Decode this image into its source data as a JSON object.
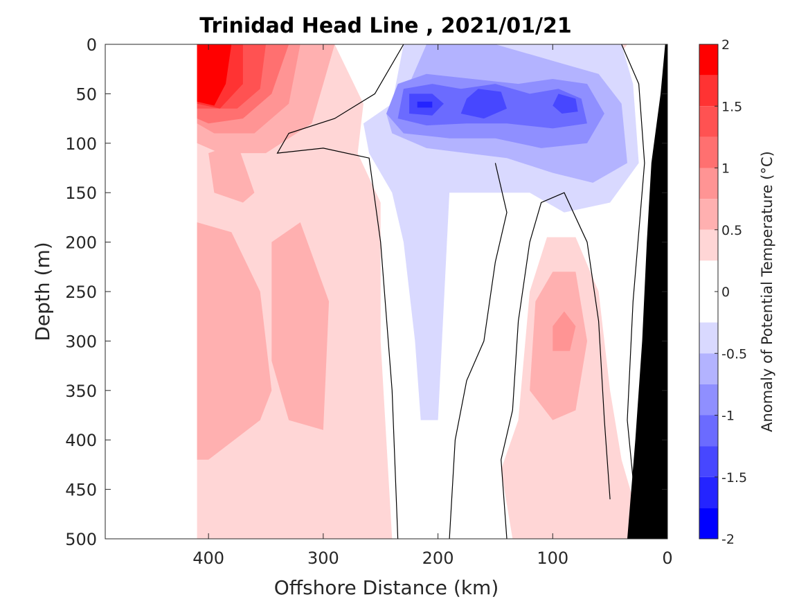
{
  "chart_data": {
    "type": "contourf",
    "title": "Trinidad Head Line , 2021/01/21",
    "xlabel": "Offshore Distance (km)",
    "ylabel": "Depth (m)",
    "xlim": [
      490,
      0
    ],
    "ylim": [
      0,
      500
    ],
    "x_reversed": true,
    "y_reversed": true,
    "x_ticks": [
      400,
      300,
      200,
      100,
      0
    ],
    "x_tick_labels": [
      "400",
      "300",
      "200",
      "100",
      "0"
    ],
    "y_ticks": [
      0,
      50,
      100,
      150,
      200,
      250,
      300,
      350,
      400,
      450,
      500
    ],
    "y_tick_labels": [
      "0",
      "50",
      "100",
      "150",
      "200",
      "250",
      "300",
      "350",
      "400",
      "450",
      "500"
    ],
    "colorbar": {
      "label": "Anomaly of Potential Temperature (°C)",
      "range": [
        -2,
        2
      ],
      "ticks": [
        2,
        1.5,
        1,
        0.5,
        0,
        -0.5,
        -1,
        -1.5,
        -2
      ],
      "tick_labels": [
        "2",
        "1.5",
        "1",
        "0.5",
        "0",
        "-0.5",
        "-1",
        "-1.5",
        "-2"
      ],
      "levels": [
        {
          "min": 1.75,
          "max": 2.0,
          "color": "#ff0000"
        },
        {
          "min": 1.5,
          "max": 1.75,
          "color": "#ff3333"
        },
        {
          "min": 1.25,
          "max": 1.5,
          "color": "#ff5252"
        },
        {
          "min": 1.0,
          "max": 1.25,
          "color": "#ff7070"
        },
        {
          "min": 0.75,
          "max": 1.0,
          "color": "#ff9494"
        },
        {
          "min": 0.5,
          "max": 0.75,
          "color": "#ffb0b0"
        },
        {
          "min": 0.25,
          "max": 0.5,
          "color": "#ffd6d6"
        },
        {
          "min": 0.0,
          "max": 0.25,
          "color": "#ffffff"
        },
        {
          "min": -0.25,
          "max": 0.0,
          "color": "#ffffff"
        },
        {
          "min": -0.5,
          "max": -0.25,
          "color": "#d9d9ff"
        },
        {
          "min": -0.75,
          "max": -0.5,
          "color": "#b3b3ff"
        },
        {
          "min": -1.0,
          "max": -0.75,
          "color": "#8f8fff"
        },
        {
          "min": -1.25,
          "max": -1.0,
          "color": "#6b6bff"
        },
        {
          "min": -1.5,
          "max": -1.25,
          "color": "#4747ff"
        },
        {
          "min": -1.75,
          "max": -1.5,
          "color": "#2424ff"
        },
        {
          "min": -2.0,
          "max": -1.75,
          "color": "#0000ff"
        }
      ]
    },
    "features": [
      {
        "name": "warm-core-surface",
        "anomaly_max": 2.0,
        "center_km": 385,
        "depth_range_m": [
          0,
          80
        ]
      },
      {
        "name": "cold-subsurface-band",
        "anomaly_min": -1.75,
        "x_range_km": [
          250,
          50
        ],
        "depth_range_m": [
          20,
          170
        ]
      },
      {
        "name": "warm-offshore-column",
        "anomaly": 0.5,
        "x_range_km": [
          410,
          250
        ],
        "depth_range_m": [
          80,
          500
        ]
      },
      {
        "name": "warm-eddy-nearshore",
        "anomaly_max": 1.0,
        "center_km": 95,
        "depth_range_m": [
          200,
          500
        ]
      },
      {
        "name": "bathymetry-shelf",
        "color": "#000000",
        "x_range_km": [
          27,
          0
        ]
      }
    ]
  }
}
